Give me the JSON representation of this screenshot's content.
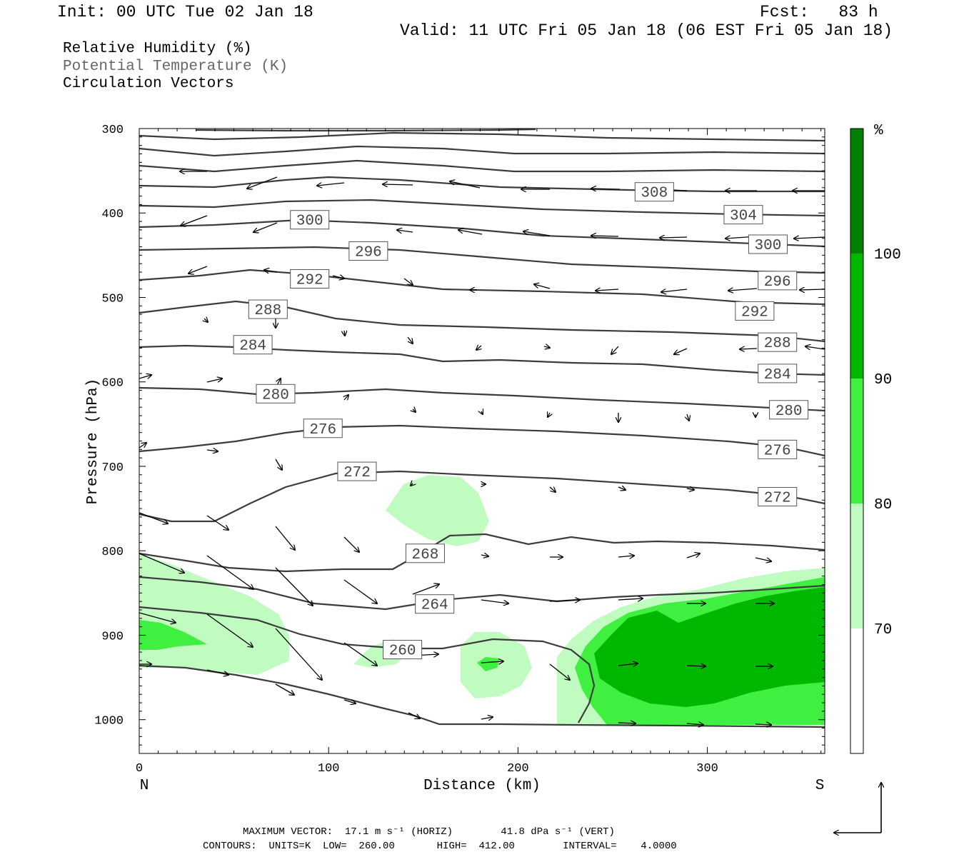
{
  "header": {
    "init": "Init: 00 UTC Tue 02 Jan 18",
    "fcst": "Fcst:   83 h",
    "valid": "Valid: 11 UTC Fri 05 Jan 18 (06 EST Fri 05 Jan 18)",
    "legend_line1": "Relative Humidity (%)",
    "legend_line2": "Potential Temperature (K)",
    "legend_line3": "Circulation Vectors"
  },
  "colors": {
    "rh70": "#c0fcc0",
    "rh80": "#40f040",
    "rh90": "#00b800",
    "rh100": "#008000",
    "theta": "#3c3c3c"
  },
  "chart_data": {
    "type": "cross-section",
    "xlabel": "Distance (km)",
    "ylabel": "Pressure (hPa)",
    "xlim": [
      0,
      362
    ],
    "ylim": [
      1040,
      300
    ],
    "x_ticks": [
      "0",
      "100",
      "200",
      "300"
    ],
    "y_ticks": [
      "300",
      "400",
      "500",
      "600",
      "700",
      "800",
      "900",
      "1000"
    ],
    "left_end_label": "N",
    "right_end_label": "S",
    "theta_contour_labels": [
      {
        "label": "308",
        "x": 272,
        "p": 375
      },
      {
        "label": "304",
        "x": 319,
        "p": 402
      },
      {
        "label": "300",
        "x": 90,
        "p": 408
      },
      {
        "label": "300",
        "x": 332,
        "p": 437
      },
      {
        "label": "296",
        "x": 121,
        "p": 445
      },
      {
        "label": "296",
        "x": 337,
        "p": 480
      },
      {
        "label": "292",
        "x": 90,
        "p": 478
      },
      {
        "label": "292",
        "x": 325,
        "p": 516
      },
      {
        "label": "288",
        "x": 68,
        "p": 514
      },
      {
        "label": "288",
        "x": 337,
        "p": 553
      },
      {
        "label": "284",
        "x": 60,
        "p": 556
      },
      {
        "label": "284",
        "x": 337,
        "p": 590
      },
      {
        "label": "280",
        "x": 72,
        "p": 614
      },
      {
        "label": "280",
        "x": 343,
        "p": 633
      },
      {
        "label": "276",
        "x": 97,
        "p": 655
      },
      {
        "label": "276",
        "x": 337,
        "p": 680
      },
      {
        "label": "272",
        "x": 115,
        "p": 706
      },
      {
        "label": "272",
        "x": 337,
        "p": 736
      },
      {
        "label": "268",
        "x": 151,
        "p": 803
      },
      {
        "label": "264",
        "x": 156,
        "p": 863
      },
      {
        "label": "260",
        "x": 139,
        "p": 917
      }
    ],
    "rh_colorbar": {
      "unit": "%",
      "levels": [
        "70",
        "80",
        "90",
        "100"
      ],
      "colors": [
        "#ffffff",
        "#c0fcc0",
        "#40f040",
        "#00b800",
        "#008000"
      ]
    },
    "footer_vector": "MAXIMUM VECTOR:  17.1 m s⁻¹ (HORIZ)        41.8 dPa s⁻¹ (VERT)",
    "footer_contours": "CONTOURS:  UNITS=K  LOW=  260.00       HIGH=  412.00        INTERVAL=    4.0000"
  }
}
